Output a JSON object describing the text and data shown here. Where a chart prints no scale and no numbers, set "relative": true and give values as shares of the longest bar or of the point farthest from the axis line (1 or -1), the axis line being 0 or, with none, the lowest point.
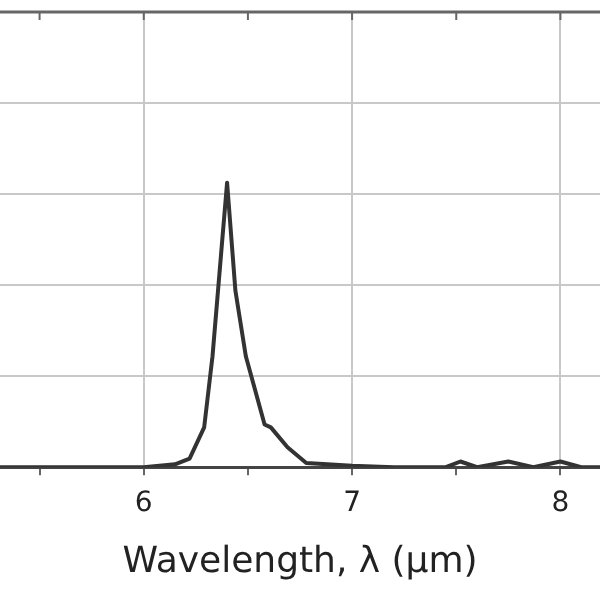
{
  "chart_data": {
    "type": "line",
    "xlabel": "Wavelength, λ (µm)",
    "relative": true,
    "grid": true,
    "legend": false,
    "marker": "none",
    "line_style": "solid",
    "xlim": [
      5.31,
      8.19
    ],
    "xticks": [
      {
        "value": 5.5,
        "label": null
      },
      6,
      {
        "value": 6.5,
        "label": null
      },
      7,
      {
        "value": 7.5,
        "label": null
      },
      8
    ],
    "series": [
      {
        "color": "#333333",
        "x": [
          5.31,
          6.0,
          6.15,
          6.22,
          6.29,
          6.33,
          6.4,
          6.44,
          6.49,
          6.58,
          6.61,
          6.69,
          6.78,
          7.0,
          7.2,
          7.45,
          7.52,
          7.6,
          7.75,
          7.87,
          8.0,
          8.1,
          8.19
        ],
        "values": [
          0,
          0,
          0.01,
          0.03,
          0.14,
          0.39,
          1.0,
          0.62,
          0.39,
          0.15,
          0.14,
          0.07,
          0.015,
          0.005,
          0,
          0,
          0.02,
          0,
          0.02,
          0,
          0.02,
          0,
          0
        ]
      }
    ]
  }
}
